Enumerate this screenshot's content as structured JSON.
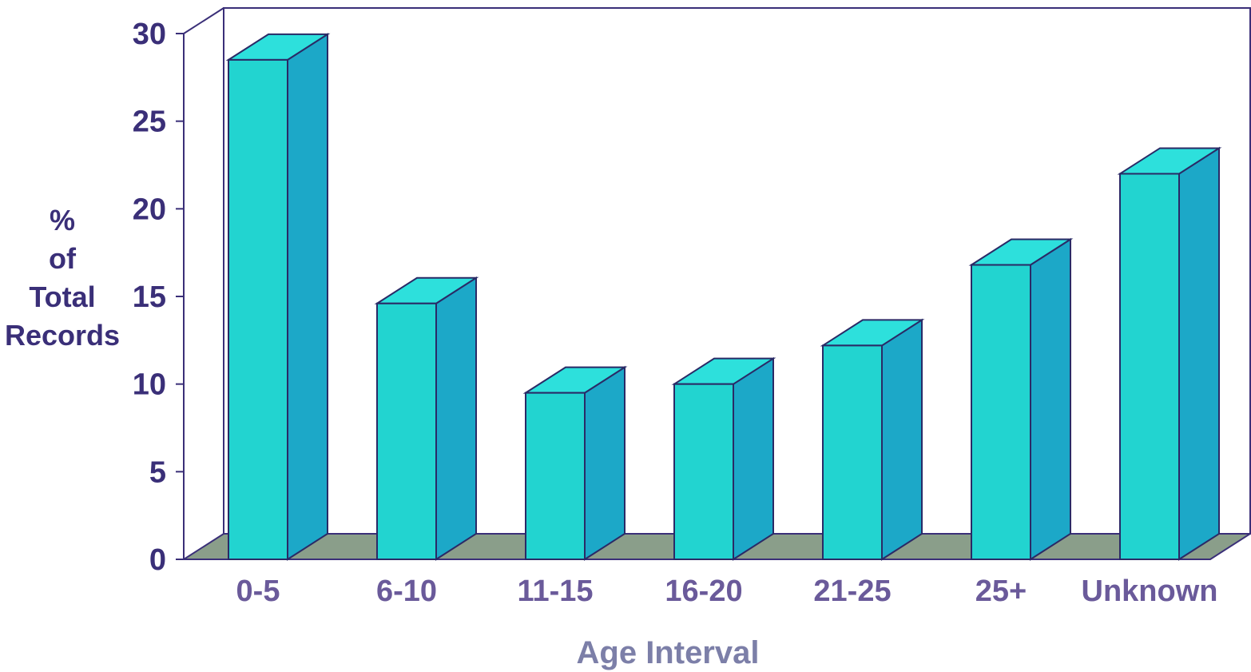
{
  "chart_data": {
    "type": "bar",
    "categories": [
      "0-5",
      "6-10",
      "11-15",
      "16-20",
      "21-25",
      "25+",
      "Unknown"
    ],
    "values": [
      28.5,
      14.6,
      9.5,
      10.0,
      12.2,
      16.8,
      22.0
    ],
    "title": "",
    "xlabel": "Age Interval",
    "ylabel_lines": [
      "%",
      "of",
      "Total",
      "Records"
    ],
    "ylim": [
      0,
      30
    ],
    "yticks": [
      0,
      5,
      10,
      15,
      20,
      25,
      30
    ],
    "grid": false,
    "style": "3d",
    "colors": {
      "bar_front": "#22d4d0",
      "bar_top": "#2de0dc",
      "bar_side": "#1ca8c8",
      "outline": "#2a2a66",
      "floor": "#8a9e8a",
      "axis": "#3a2f78"
    }
  }
}
